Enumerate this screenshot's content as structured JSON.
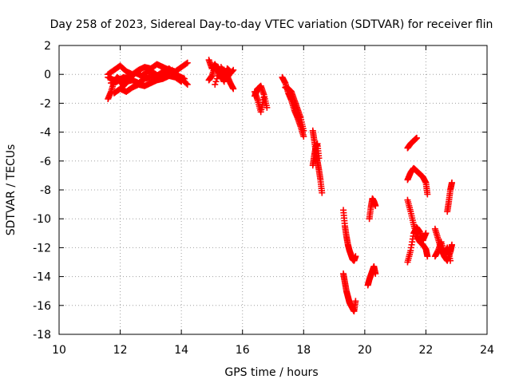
{
  "chart_data": {
    "type": "scatter",
    "title": "Day 258 of 2023, Sidereal Day-to-day VTEC variation (SDTVAR) for receiver flin",
    "xlabel": "GPS time / hours",
    "ylabel": "SDTVAR / TECUs",
    "xlim": [
      10,
      24
    ],
    "ylim": [
      -18,
      2
    ],
    "xticks": [
      10,
      12,
      14,
      16,
      18,
      20,
      22,
      24
    ],
    "yticks": [
      -18,
      -16,
      -14,
      -12,
      -10,
      -8,
      -6,
      -4,
      -2,
      0,
      2
    ],
    "grid": true,
    "marker": "+",
    "marker_color": "#ff0000",
    "series": [
      {
        "name": "SDTVAR",
        "segments": [
          {
            "x": [
              11.6,
              11.7,
              11.8,
              11.9,
              12.0,
              12.1,
              12.2
            ],
            "y": [
              -1.7,
              -1.2,
              -0.5,
              -0.2,
              -0.4,
              -0.8,
              -0.6
            ]
          },
          {
            "x": [
              11.6,
              11.8,
              12.0,
              12.2,
              12.4,
              12.6,
              12.8,
              13.0,
              13.2,
              13.4,
              13.6,
              13.8,
              14.0,
              14.2
            ],
            "y": [
              -0.2,
              -0.4,
              -0.3,
              -0.5,
              -0.4,
              -0.6,
              -0.3,
              -0.2,
              -0.1,
              0.2,
              0.4,
              0.0,
              -0.3,
              -0.7
            ]
          },
          {
            "x": [
              11.6,
              11.8,
              12.0,
              12.2,
              12.4,
              12.6,
              12.8,
              13.0,
              13.2,
              13.4,
              13.6,
              13.8,
              14.0,
              14.2
            ],
            "y": [
              0.0,
              0.3,
              0.6,
              0.2,
              0.0,
              0.3,
              0.5,
              0.4,
              0.7,
              0.5,
              0.3,
              0.2,
              0.5,
              0.8
            ]
          },
          {
            "x": [
              11.8,
              12.0,
              12.2,
              12.4,
              12.6,
              12.8,
              13.0,
              13.2,
              13.4,
              13.6,
              13.8,
              14.0
            ],
            "y": [
              -1.3,
              -1.0,
              -1.2,
              -0.9,
              -0.7,
              -0.8,
              -0.6,
              -0.4,
              -0.3,
              -0.1,
              -0.2,
              -0.5
            ]
          },
          {
            "x": [
              11.7,
              11.9,
              12.1,
              12.3,
              12.5,
              12.7,
              12.9,
              13.1,
              13.3,
              13.5,
              13.7,
              13.9,
              14.1
            ],
            "y": [
              -0.6,
              -0.5,
              -0.2,
              -0.3,
              0.1,
              -0.1,
              0.2,
              0.1,
              -0.2,
              0.0,
              0.3,
              -0.1,
              -0.3
            ]
          },
          {
            "x": [
              14.9,
              15.0,
              15.1,
              15.2,
              15.3,
              15.4,
              15.5,
              15.6,
              15.7
            ],
            "y": [
              1.0,
              0.4,
              0.7,
              0.2,
              -0.3,
              0.3,
              -0.1,
              -0.6,
              -1.0
            ]
          },
          {
            "x": [
              14.9,
              15.0,
              15.1,
              15.2,
              15.3,
              15.4,
              15.5,
              15.6
            ],
            "y": [
              -0.4,
              -0.1,
              0.6,
              0.5,
              0.0,
              -0.5,
              0.4,
              0.2
            ]
          },
          {
            "x": [
              15.1,
              15.3,
              15.5,
              15.7
            ],
            "y": [
              -0.7,
              0.5,
              -0.2,
              0.3
            ]
          },
          {
            "x": [
              16.4,
              16.5,
              16.6,
              16.7,
              16.8
            ],
            "y": [
              -1.5,
              -1.0,
              -0.8,
              -1.4,
              -2.3
            ]
          },
          {
            "x": [
              16.4,
              16.5,
              16.6,
              16.7
            ],
            "y": [
              -1.2,
              -1.8,
              -2.6,
              -1.6
            ]
          },
          {
            "x": [
              17.3,
              17.4,
              17.5,
              17.6,
              17.7,
              17.8,
              17.9,
              18.0
            ],
            "y": [
              -0.2,
              -0.6,
              -1.3,
              -1.8,
              -2.5,
              -3.0,
              -3.6,
              -4.3
            ]
          },
          {
            "x": [
              17.4,
              17.5,
              17.6,
              17.7,
              17.8,
              17.9,
              18.0
            ],
            "y": [
              -0.9,
              -1.0,
              -1.2,
              -1.8,
              -2.4,
              -3.0,
              -3.9
            ]
          },
          {
            "x": [
              18.3,
              18.35,
              18.4,
              18.45,
              18.5,
              18.55,
              18.6
            ],
            "y": [
              -3.9,
              -4.6,
              -5.4,
              -6.0,
              -6.6,
              -7.3,
              -8.2
            ]
          },
          {
            "x": [
              18.3,
              18.35,
              18.4,
              18.45,
              18.5
            ],
            "y": [
              -6.3,
              -5.6,
              -5.0,
              -4.8,
              -5.8
            ]
          },
          {
            "x": [
              19.3,
              19.35,
              19.4,
              19.45,
              19.5,
              19.55,
              19.6,
              19.65,
              19.7
            ],
            "y": [
              -9.4,
              -10.5,
              -11.2,
              -11.8,
              -12.2,
              -12.5,
              -12.8,
              -12.9,
              -12.6
            ]
          },
          {
            "x": [
              19.3,
              19.35,
              19.4,
              19.45,
              19.5,
              19.55,
              19.6,
              19.65,
              19.7
            ],
            "y": [
              -13.8,
              -14.4,
              -15.0,
              -15.4,
              -15.8,
              -16.0,
              -16.2,
              -16.4,
              -15.7
            ]
          },
          {
            "x": [
              20.1,
              20.15,
              20.2,
              20.25,
              20.3,
              20.35
            ],
            "y": [
              -14.6,
              -14.2,
              -13.9,
              -13.6,
              -13.3,
              -13.8
            ]
          },
          {
            "x": [
              20.15,
              20.2,
              20.25,
              20.3,
              20.35
            ],
            "y": [
              -10.0,
              -9.2,
              -8.6,
              -8.8,
              -9.1
            ]
          },
          {
            "x": [
              21.4,
              21.5,
              21.6,
              21.7
            ],
            "y": [
              -5.1,
              -4.8,
              -4.6,
              -4.4
            ]
          },
          {
            "x": [
              21.4,
              21.5,
              21.6,
              21.7,
              21.8,
              21.9,
              22.0,
              22.05
            ],
            "y": [
              -7.3,
              -6.8,
              -6.5,
              -6.7,
              -6.9,
              -7.1,
              -7.5,
              -8.3
            ]
          },
          {
            "x": [
              21.4,
              21.5,
              21.6,
              21.7,
              21.8,
              21.9,
              22.0,
              22.05
            ],
            "y": [
              -8.7,
              -9.5,
              -10.4,
              -11.2,
              -11.6,
              -11.8,
              -12.1,
              -12.6
            ]
          },
          {
            "x": [
              21.4,
              21.5,
              21.6,
              21.7,
              21.8,
              21.9,
              22.0
            ],
            "y": [
              -13.0,
              -12.2,
              -11.0,
              -10.6,
              -10.9,
              -11.5,
              -11.0
            ]
          },
          {
            "x": [
              22.3,
              22.4,
              22.5,
              22.6,
              22.7,
              22.8,
              22.85
            ],
            "y": [
              -10.7,
              -11.4,
              -12.1,
              -12.6,
              -12.9,
              -12.3,
              -11.8
            ]
          },
          {
            "x": [
              22.3,
              22.4,
              22.5,
              22.6,
              22.7,
              22.8
            ],
            "y": [
              -12.6,
              -12.2,
              -11.6,
              -12.4,
              -12.0,
              -12.9
            ]
          },
          {
            "x": [
              22.7,
              22.75,
              22.8,
              22.85
            ],
            "y": [
              -9.5,
              -8.8,
              -8.0,
              -7.5
            ]
          }
        ]
      }
    ]
  }
}
